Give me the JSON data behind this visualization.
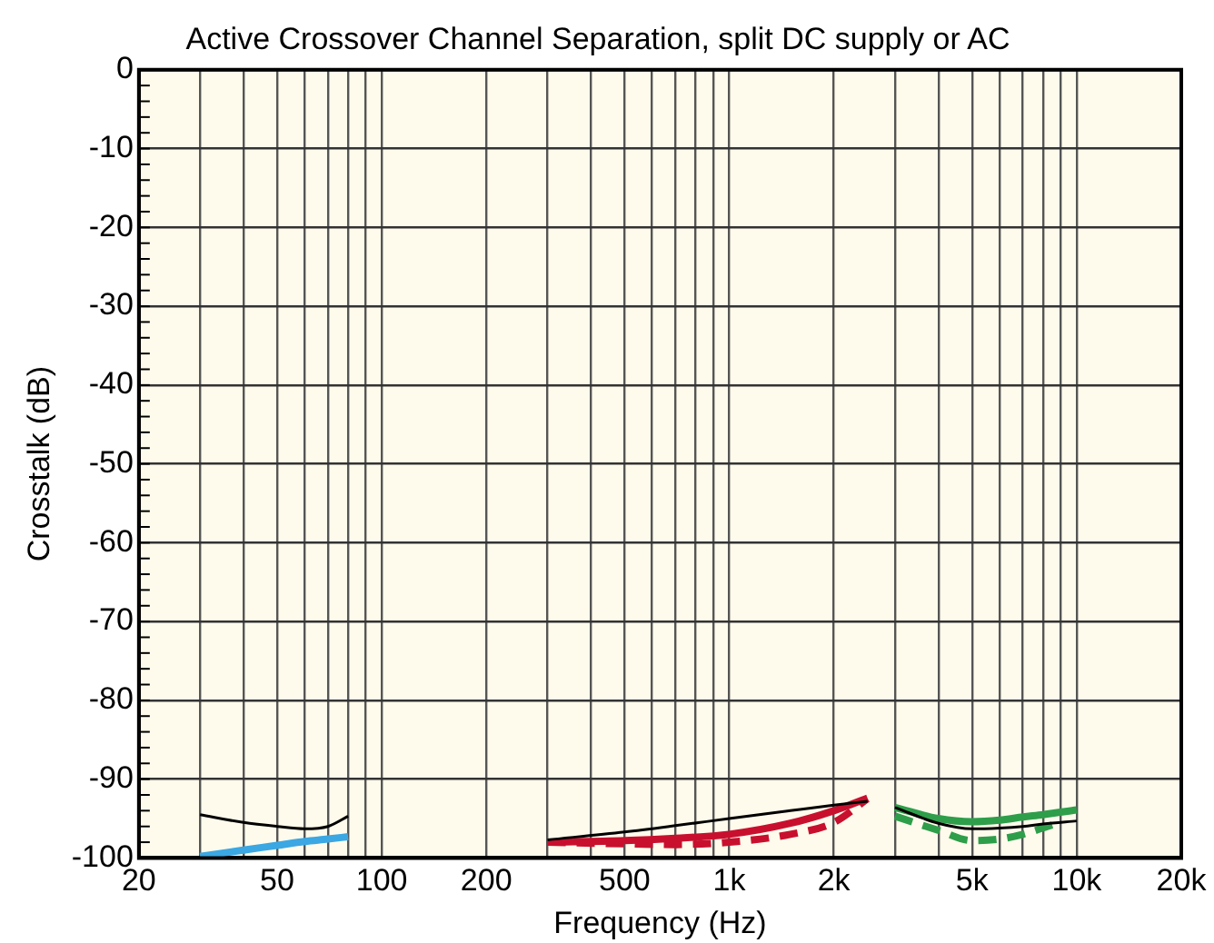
{
  "chart_data": {
    "type": "line",
    "title": "Active Crossover Channel Separation, split DC supply or AC",
    "xlabel": "Frequency (Hz)",
    "ylabel": "Crosstalk (dB)",
    "log": "x",
    "grid": true,
    "legend": false,
    "marker": "none",
    "xlim": [
      20,
      20000
    ],
    "ylim": [
      -100,
      0
    ],
    "xticks": [
      20,
      {
        "value": 30,
        "label": null
      },
      {
        "value": 40,
        "label": null
      },
      50,
      {
        "value": 60,
        "label": null
      },
      {
        "value": 70,
        "label": null
      },
      {
        "value": 80,
        "label": null
      },
      {
        "value": 90,
        "label": null
      },
      100,
      200,
      {
        "value": 300,
        "label": null
      },
      {
        "value": 400,
        "label": null
      },
      500,
      {
        "value": 600,
        "label": null
      },
      {
        "value": 700,
        "label": null
      },
      {
        "value": 800,
        "label": null
      },
      {
        "value": 900,
        "label": null
      },
      {
        "value": 1000,
        "label": "1k"
      },
      {
        "value": 2000,
        "label": "2k"
      },
      {
        "value": 3000,
        "label": null
      },
      {
        "value": 4000,
        "label": null
      },
      {
        "value": 5000,
        "label": "5k"
      },
      {
        "value": 6000,
        "label": null
      },
      {
        "value": 7000,
        "label": null
      },
      {
        "value": 8000,
        "label": null
      },
      {
        "value": 9000,
        "label": null
      },
      {
        "value": 10000,
        "label": "10k"
      },
      {
        "value": 20000,
        "label": "20k"
      }
    ],
    "yticks": [
      -100,
      -90,
      -80,
      -70,
      -60,
      -50,
      -40,
      -30,
      -20,
      -10,
      0
    ],
    "series": [
      {
        "color": "#000000",
        "line_style": "solid",
        "x": [
          30,
          40,
          50,
          60,
          70,
          80
        ],
        "values": [
          -94.5,
          -95.5,
          -96,
          -96.3,
          -96,
          -94.7
        ]
      },
      {
        "color": "#3ba7e3",
        "line_style": "solid",
        "x": [
          30,
          40,
          50,
          60,
          70,
          80
        ],
        "values": [
          -99.8,
          -99,
          -98.4,
          -97.9,
          -97.6,
          -97.3
        ]
      },
      {
        "color": "#000000",
        "line_style": "solid",
        "x": [
          300,
          500,
          700,
          1000,
          1500,
          2000,
          2500
        ],
        "values": [
          -97.7,
          -96.7,
          -95.9,
          -95,
          -94,
          -93.3,
          -92.8
        ]
      },
      {
        "color": "#c8102e",
        "line_style": "solid",
        "x": [
          300,
          500,
          700,
          1000,
          1500,
          2000,
          2500
        ],
        "values": [
          -98,
          -97.8,
          -97.5,
          -97,
          -95.6,
          -94,
          -92.4
        ]
      },
      {
        "color": "#c8102e",
        "line_style": "dashed",
        "x": [
          300,
          500,
          700,
          1000,
          1500,
          2000,
          2500
        ],
        "values": [
          -98,
          -98.2,
          -98.3,
          -98,
          -97,
          -95.5,
          -92.5
        ]
      },
      {
        "color": "#000000",
        "line_style": "solid",
        "x": [
          3000,
          4000,
          5000,
          6000,
          7000,
          8000,
          10000
        ],
        "values": [
          -93.6,
          -95.6,
          -96.3,
          -96.2,
          -96,
          -95.7,
          -95.3
        ]
      },
      {
        "color": "#2e9e4a",
        "line_style": "solid",
        "x": [
          3000,
          4000,
          5000,
          6000,
          7000,
          8000,
          10000
        ],
        "values": [
          -93.6,
          -95,
          -95.4,
          -95.2,
          -94.8,
          -94.5,
          -93.9
        ]
      },
      {
        "color": "#2e9e4a",
        "line_style": "dashed",
        "x": [
          3000,
          4000,
          5000,
          6000,
          7000,
          8500
        ],
        "values": [
          -94.7,
          -96.5,
          -97.8,
          -97.6,
          -97,
          -95.8
        ]
      }
    ]
  }
}
